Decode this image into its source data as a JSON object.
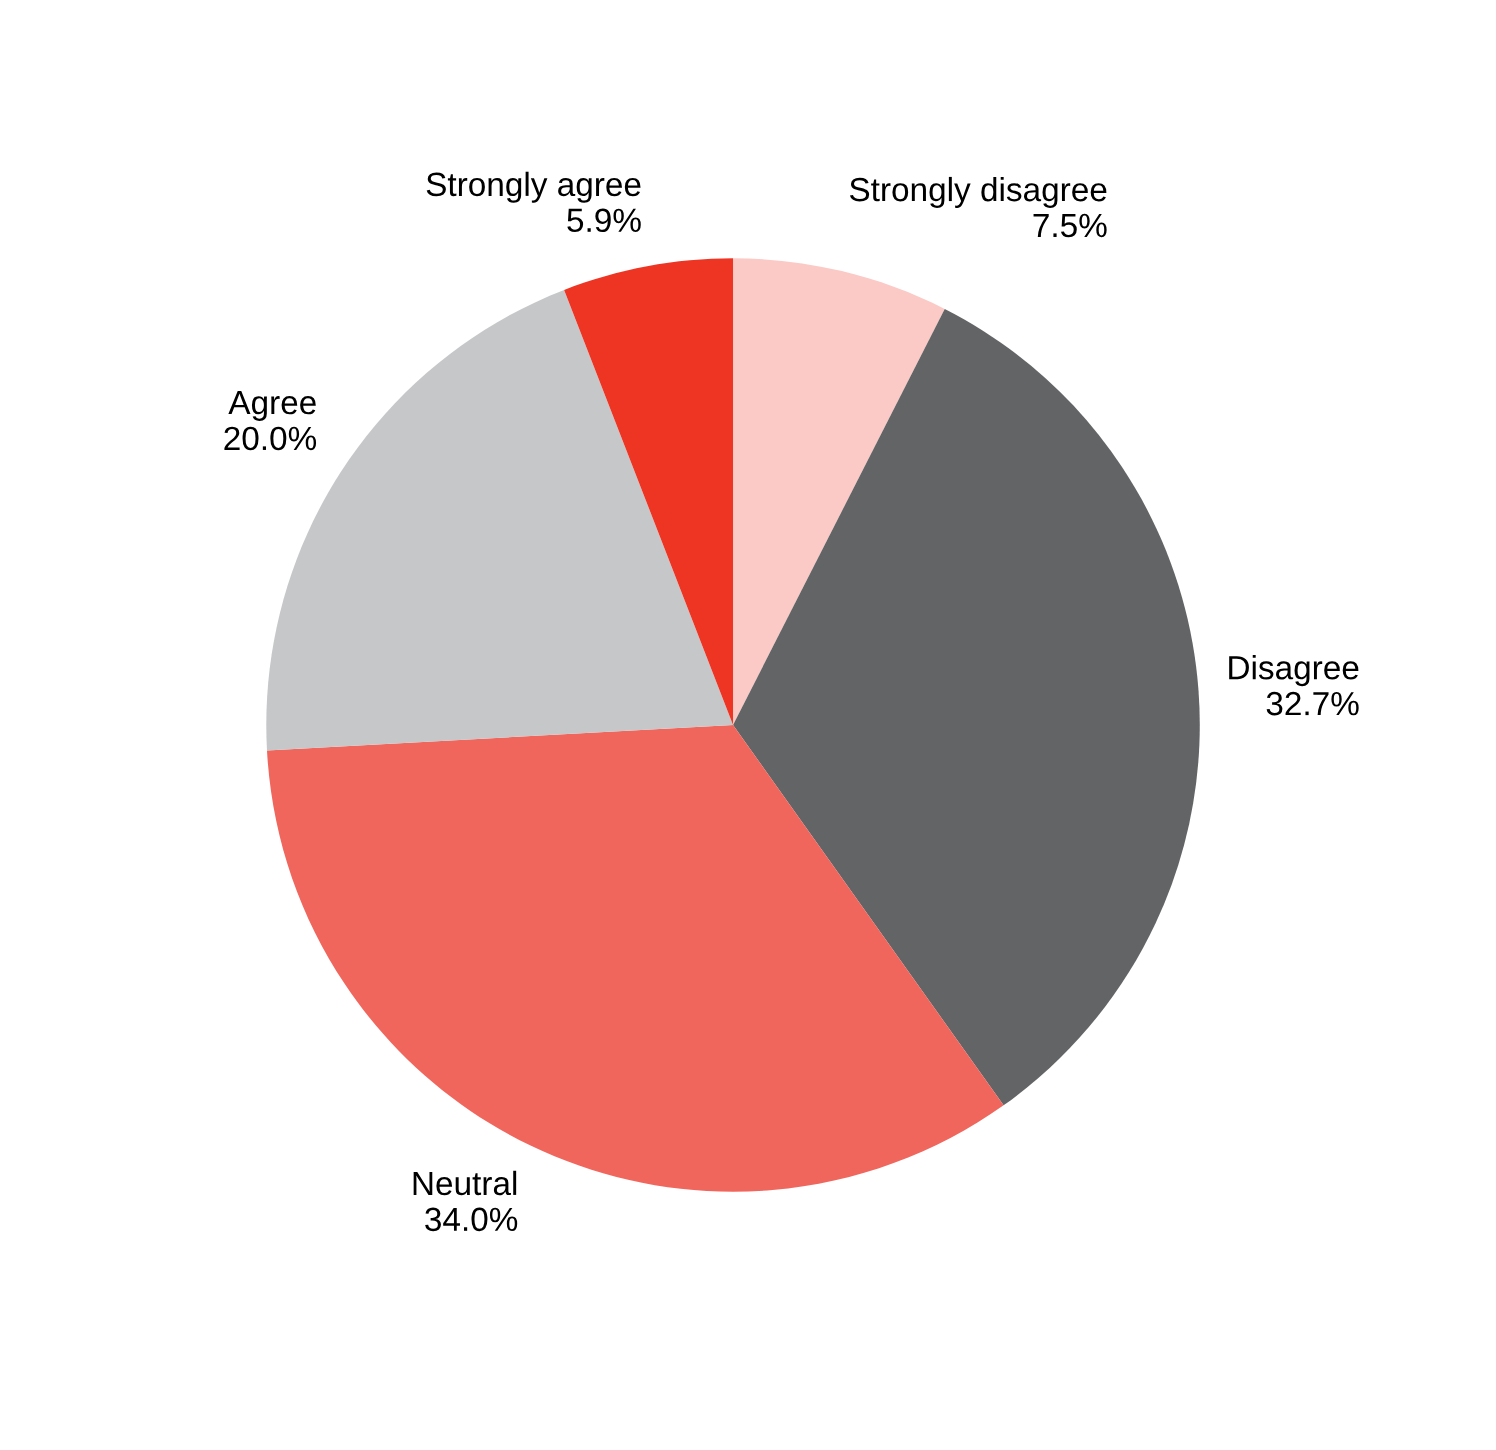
{
  "chart_data": {
    "type": "pie",
    "categories": [
      "Strongly disagree",
      "Disagree",
      "Neutral",
      "Agree",
      "Strongly agree"
    ],
    "values": [
      7.5,
      32.7,
      34.0,
      20.0,
      5.9
    ],
    "value_labels": [
      "7.5%",
      "32.7%",
      "34.0%",
      "20.0%",
      "5.9%"
    ],
    "colors": [
      "#fbcac6",
      "#636466",
      "#f1665c",
      "#c6c7c9",
      "#ee3524"
    ],
    "legend": false
  }
}
